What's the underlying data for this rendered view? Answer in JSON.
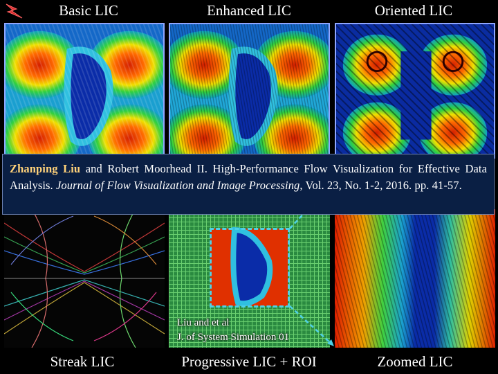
{
  "labels": {
    "basic": "Basic LIC",
    "enhanced": "Enhanced LIC",
    "oriented": "Oriented LIC",
    "streak": "Streak LIC",
    "progressive": "Progressive LIC + ROI",
    "zoomed": "Zoomed LIC"
  },
  "citation": {
    "author1": "Zhanping Liu",
    "part1": " and Robert Moorhead II. High-Performance Flow Visualization for Effective Data Analysis. ",
    "journal": "Journal of Flow Visualization and Image Processing",
    "part2": ", Vol. 23, No. 1-2, 2016. pp. 41-57."
  },
  "note": {
    "line1": "Liu and et al",
    "line2": "J. of System Simulation 01"
  },
  "colors": {
    "panel_border": "#8fa6ff",
    "roi": "#4fd0e6",
    "citation_bg": "#0a1f44",
    "author": "#ffd27a"
  }
}
